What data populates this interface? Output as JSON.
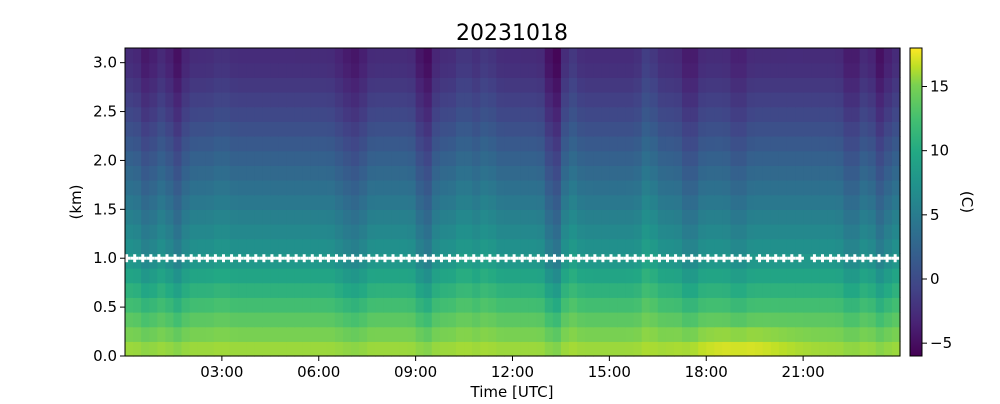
{
  "chart_data": {
    "type": "heatmap",
    "title": "20231018",
    "xlabel": "Time [UTC]",
    "ylabel": "(km)",
    "colorbar_label": "(C)",
    "colormap": "viridis",
    "x_unit": "hours UTC",
    "xlim": [
      0,
      24
    ],
    "ylim": [
      0,
      3.15
    ],
    "clim": [
      -6,
      18
    ],
    "x_ticks": [
      {
        "value": 3,
        "label": "03:00"
      },
      {
        "value": 6,
        "label": "06:00"
      },
      {
        "value": 9,
        "label": "09:00"
      },
      {
        "value": 12,
        "label": "12:00"
      },
      {
        "value": 15,
        "label": "15:00"
      },
      {
        "value": 18,
        "label": "18:00"
      },
      {
        "value": 21,
        "label": "21:00"
      }
    ],
    "y_ticks": [
      {
        "value": 0.0,
        "label": "0.0"
      },
      {
        "value": 0.5,
        "label": "0.5"
      },
      {
        "value": 1.0,
        "label": "1.0"
      },
      {
        "value": 1.5,
        "label": "1.5"
      },
      {
        "value": 2.0,
        "label": "2.0"
      },
      {
        "value": 2.5,
        "label": "2.5"
      },
      {
        "value": 3.0,
        "label": "3.0"
      }
    ],
    "colorbar_ticks": [
      {
        "value": -5,
        "label": "−5"
      },
      {
        "value": 0,
        "label": "0"
      },
      {
        "value": 5,
        "label": "5"
      },
      {
        "value": 10,
        "label": "10"
      },
      {
        "value": 15,
        "label": "15"
      }
    ],
    "heights_km": [
      0.0,
      0.15,
      0.3,
      0.45,
      0.6,
      0.75,
      0.9,
      1.05,
      1.2,
      1.35,
      1.5,
      1.65,
      1.8,
      1.95,
      2.1,
      2.25,
      2.4,
      2.55,
      2.7,
      2.85,
      3.0
    ],
    "temperature_profile": {
      "height_km": [
        0.0,
        0.3,
        0.6,
        1.0,
        1.5,
        2.0,
        2.5,
        3.0
      ],
      "temp_c": [
        15,
        12.5,
        10,
        6.5,
        4,
        1.5,
        -1,
        -3
      ]
    },
    "time_anomalies": [
      {
        "time": 0.7,
        "dT": -1.5
      },
      {
        "time": 1.6,
        "dT": -2.0
      },
      {
        "time": 3.0,
        "dT": 0.5
      },
      {
        "time": 6.8,
        "dT": -1.0
      },
      {
        "time": 7.2,
        "dT": -1.5
      },
      {
        "time": 9.3,
        "dT": -2.5
      },
      {
        "time": 10.5,
        "dT": 1.0
      },
      {
        "time": 11.2,
        "dT": 1.0
      },
      {
        "time": 13.3,
        "dT": -3.0
      },
      {
        "time": 13.8,
        "dT": 1.0
      },
      {
        "time": 16.2,
        "dT": 1.5
      },
      {
        "time": 17.5,
        "dT": -1.5
      },
      {
        "time": 19.0,
        "dT": -1.0
      },
      {
        "time": 22.5,
        "dT": -1.5
      },
      {
        "time": 23.4,
        "dT": -2.0
      }
    ],
    "surface_warm_spot": {
      "time": 19.0,
      "height_km": 0.0,
      "temp_c": 17.5
    },
    "series": [
      {
        "marker": "white plus",
        "height_km": 1.0,
        "time_ranges": [
          [
            0.0,
            19.3
          ],
          [
            19.6,
            21.0
          ],
          [
            21.3,
            24.0
          ]
        ]
      }
    ]
  }
}
